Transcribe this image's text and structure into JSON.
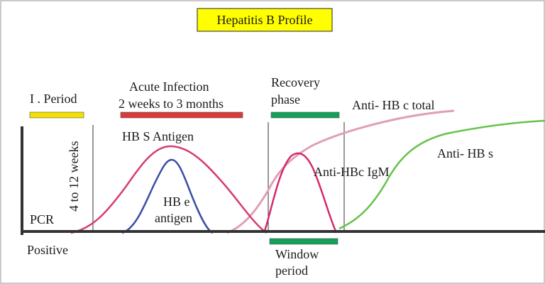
{
  "title": "Hepatitis B Profile",
  "colors": {
    "frame": "#b8b8b8",
    "title_bg": "#ffff00",
    "axis": "#333333",
    "incubation_bar": "#f2e000",
    "acute_bar": "#d83a3a",
    "recovery_bar": "#13a05a",
    "hbsag_curve": "#d63c70",
    "hbeag_curve": "#3a4fa5",
    "igm_curve": "#d6286e",
    "anti_hbc_total_curve": "#e0a0b4",
    "anti_hbs_curve": "#66c24a"
  },
  "phases": {
    "incubation": "I . Period",
    "acute_line1": "Acute Infection",
    "acute_line2": "2 weeks to 3 months",
    "recovery_line1": "Recovery",
    "recovery_line2": "phase",
    "window_line1": "Window",
    "window_line2": "period",
    "incubation_duration": "4 to 12 weeks"
  },
  "markers": {
    "hbsag": "HB S Antigen",
    "hbeag_line1": "HB e",
    "hbeag_line2": "antigen",
    "anti_hbc_total": "Anti- HB c total",
    "anti_hbc_igm": "Anti-HBc IgM",
    "anti_hbs": "Anti- HB s"
  },
  "axis_labels": {
    "pcr": "PCR",
    "positive": "Positive"
  }
}
